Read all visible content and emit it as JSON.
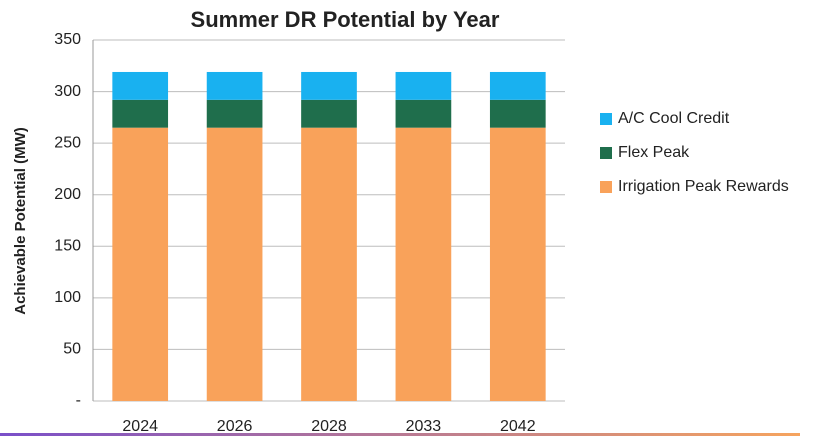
{
  "chart_data": {
    "type": "stacked_bar",
    "title": "Summer DR Potential by Year",
    "ylabel": "Achievable Potential (MW)",
    "categories": [
      "2024",
      "2026",
      "2028",
      "2033",
      "2042"
    ],
    "series": [
      {
        "name": "Irrigation Peak Rewards",
        "color": "#f9a25a",
        "values": [
          265,
          265,
          265,
          265,
          265
        ]
      },
      {
        "name": "Flex Peak",
        "color": "#1f6e4c",
        "values": [
          27,
          27,
          27,
          27,
          27
        ]
      },
      {
        "name": "A/C Cool Credit",
        "color": "#19b1f0",
        "values": [
          27,
          27,
          27,
          27,
          27
        ]
      }
    ],
    "ylim": [
      0,
      350
    ],
    "yticks": [
      {
        "value": 0,
        "label": "-"
      },
      50,
      100,
      150,
      200,
      250,
      300,
      350
    ],
    "grid": true,
    "legend": "right"
  }
}
